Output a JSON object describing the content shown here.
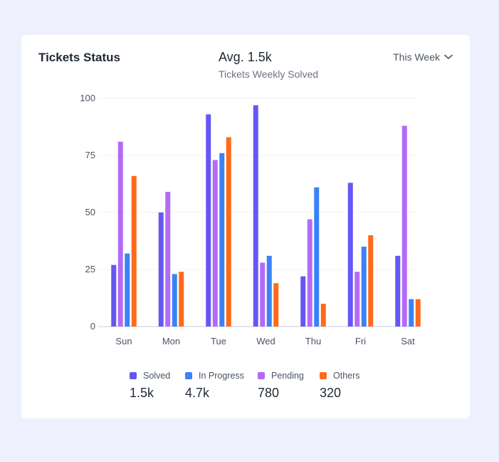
{
  "header": {
    "title": "Tickets Status",
    "avg": "Avg. 1.5k",
    "avg_subtitle": "Tickets Weekly Solved",
    "period": "This Week",
    "period_icon": "chevron-down-icon"
  },
  "legend": [
    {
      "name": "Solved",
      "value": "1.5k",
      "color": "#6557f5"
    },
    {
      "name": "In Progress",
      "value": "4.7k",
      "color": "#3b82f6"
    },
    {
      "name": "Pending",
      "value": "780",
      "color": "#b36bf6"
    },
    {
      "name": "Others",
      "value": "320",
      "color": "#ff6a1a"
    }
  ],
  "chart_data": {
    "type": "bar",
    "categories": [
      "Sun",
      "Mon",
      "Tue",
      "Wed",
      "Thu",
      "Fri",
      "Sat"
    ],
    "series": [
      {
        "name": "Solved",
        "color": "#6557f5",
        "values": [
          27,
          50,
          93,
          97,
          22,
          63,
          31
        ]
      },
      {
        "name": "Pending",
        "color": "#b36bf6",
        "values": [
          81,
          59,
          73,
          28,
          47,
          24,
          88
        ]
      },
      {
        "name": "In Progress",
        "color": "#3b82f6",
        "values": [
          32,
          23,
          76,
          31,
          61,
          35,
          12
        ]
      },
      {
        "name": "Others",
        "color": "#ff6a1a",
        "values": [
          66,
          24,
          83,
          19,
          10,
          40,
          12
        ]
      }
    ],
    "yticks": [
      0,
      25,
      50,
      75,
      100
    ],
    "ylim": [
      0,
      100
    ],
    "grid": true
  }
}
